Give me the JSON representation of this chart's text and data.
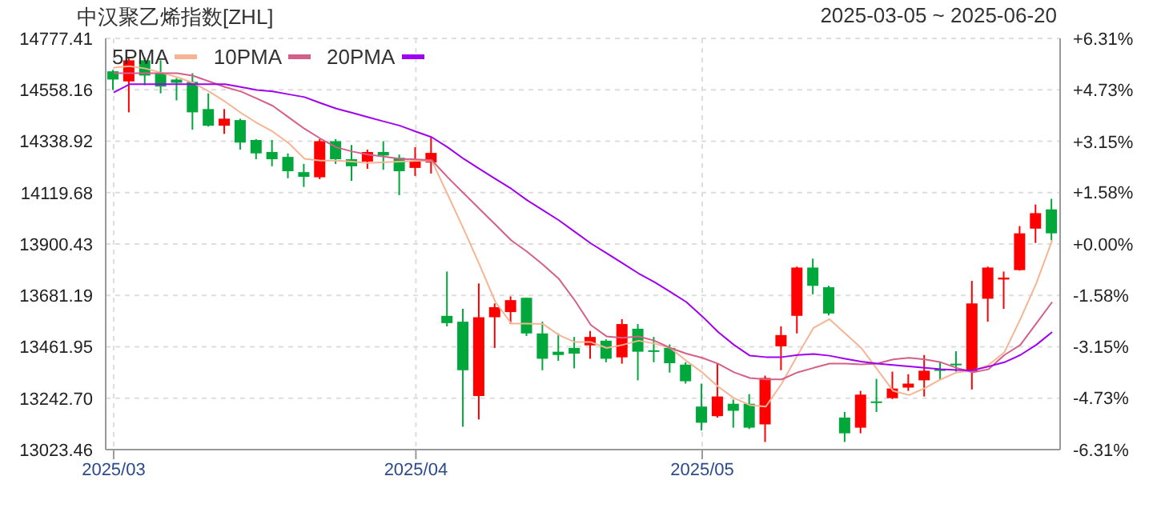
{
  "chart_data": {
    "type": "candlestick",
    "title": "中汉聚乙烯指数[ZHL]",
    "subtitle": "2025-03-05 ~ 2025-06-20",
    "categories": [
      "2025/03",
      null,
      null,
      null,
      null,
      null,
      null,
      null,
      null,
      null,
      null,
      null,
      null,
      null,
      null,
      null,
      null,
      null,
      null,
      "2025/04",
      null,
      null,
      null,
      null,
      null,
      null,
      null,
      null,
      null,
      null,
      null,
      null,
      null,
      null,
      null,
      null,
      null,
      "2025/05",
      null,
      null,
      null,
      null,
      null,
      null,
      null,
      null,
      null,
      null,
      null,
      null,
      null,
      null,
      null,
      null,
      null,
      null,
      null,
      null,
      null,
      null
    ],
    "ohlc": [
      [
        14637,
        14643,
        14557,
        14602
      ],
      [
        14594,
        14696,
        14462,
        14684
      ],
      [
        14684,
        14696,
        14578,
        14619
      ],
      [
        14629,
        14684,
        14543,
        14572
      ],
      [
        14602,
        14608,
        14513,
        14588
      ],
      [
        14592,
        14629,
        14388,
        14462
      ],
      [
        14476,
        14543,
        14401,
        14405
      ],
      [
        14405,
        14476,
        14370,
        14435
      ],
      [
        14429,
        14435,
        14303,
        14333
      ],
      [
        14344,
        14348,
        14262,
        14287
      ],
      [
        14293,
        14344,
        14232,
        14262
      ],
      [
        14272,
        14287,
        14181,
        14211
      ],
      [
        14207,
        14242,
        14144,
        14187
      ],
      [
        14185,
        14348,
        14177,
        14339
      ],
      [
        14339,
        14348,
        14242,
        14262
      ],
      [
        14262,
        14323,
        14170,
        14232
      ],
      [
        14252,
        14303,
        14221,
        14293
      ],
      [
        14293,
        14339,
        14217,
        14278
      ],
      [
        14268,
        14282,
        14109,
        14211
      ],
      [
        14225,
        14313,
        14191,
        14252
      ],
      [
        14248,
        14354,
        14201,
        14289
      ],
      [
        13594,
        13783,
        13549,
        13563
      ],
      [
        13569,
        13624,
        13121,
        13362
      ],
      [
        13252,
        13732,
        13152,
        13588
      ],
      [
        13588,
        13647,
        13457,
        13631
      ],
      [
        13610,
        13677,
        13559,
        13661
      ],
      [
        13671,
        13671,
        13508,
        13519
      ],
      [
        13519,
        13569,
        13362,
        13411
      ],
      [
        13441,
        13519,
        13402,
        13427
      ],
      [
        13457,
        13504,
        13370,
        13433
      ],
      [
        13468,
        13529,
        13411,
        13504
      ],
      [
        13488,
        13494,
        13396,
        13411
      ],
      [
        13417,
        13580,
        13390,
        13559
      ],
      [
        13539,
        13559,
        13319,
        13441
      ],
      [
        13447,
        13504,
        13396,
        13443
      ],
      [
        13457,
        13472,
        13352,
        13392
      ],
      [
        13386,
        13396,
        13305,
        13315
      ],
      [
        13207,
        13305,
        13105,
        13138
      ],
      [
        13166,
        13392,
        13160,
        13250
      ],
      [
        13219,
        13237,
        13117,
        13189
      ],
      [
        13219,
        13260,
        13111,
        13117
      ],
      [
        13131,
        13339,
        13056,
        13329
      ],
      [
        13464,
        13549,
        13362,
        13512
      ],
      [
        13594,
        13804,
        13519,
        13800
      ],
      [
        13800,
        13838,
        13686,
        13722
      ],
      [
        13716,
        13722,
        13596,
        13604
      ],
      [
        13160,
        13184,
        13056,
        13093
      ],
      [
        13117,
        13274,
        13093,
        13258
      ],
      [
        13229,
        13325,
        13184,
        13227
      ],
      [
        13243,
        13356,
        13239,
        13284
      ],
      [
        13288,
        13345,
        13274,
        13305
      ],
      [
        13319,
        13427,
        13250,
        13360
      ],
      [
        13366,
        13396,
        13321,
        13362
      ],
      [
        13390,
        13443,
        13356,
        13386
      ],
      [
        13356,
        13743,
        13280,
        13647
      ],
      [
        13667,
        13804,
        13569,
        13800
      ],
      [
        13749,
        13783,
        13624,
        13757
      ],
      [
        13789,
        13977,
        13787,
        13946
      ],
      [
        13966,
        14069,
        13905,
        14032
      ],
      [
        14048,
        14093,
        13916,
        13946
      ]
    ],
    "colors": [
      "#00a83c",
      "#ff0000",
      "#00a83c",
      "#00a83c",
      "#00a83c",
      "#00a83c",
      "#00a83c",
      "#ff0000",
      "#00a83c",
      "#00a83c",
      "#00a83c",
      "#00a83c",
      "#00a83c",
      "#ff0000",
      "#00a83c",
      "#00a83c",
      "#ff0000",
      "#00a83c",
      "#00a83c",
      "#ff0000",
      "#ff0000",
      "#00a83c",
      "#00a83c",
      "#ff0000",
      "#ff0000",
      "#ff0000",
      "#00a83c",
      "#00a83c",
      "#00a83c",
      "#00a83c",
      "#ff0000",
      "#00a83c",
      "#ff0000",
      "#00a83c",
      "#00a83c",
      "#00a83c",
      "#00a83c",
      "#00a83c",
      "#ff0000",
      "#00a83c",
      "#00a83c",
      "#ff0000",
      "#ff0000",
      "#ff0000",
      "#00a83c",
      "#00a83c",
      "#00a83c",
      "#ff0000",
      "#00a83c",
      "#ff0000",
      "#ff0000",
      "#ff0000",
      "#00a83c",
      "#00a83c",
      "#ff0000",
      "#ff0000",
      "#ff0000",
      "#ff0000",
      "#ff0000",
      "#00a83c"
    ],
    "series": [
      {
        "name": "5PMA",
        "type": "line",
        "color": "#f5b595",
        "values": [
          14653,
          14659,
          14649,
          14631,
          14612,
          14588,
          14551,
          14508,
          14460,
          14417,
          14380,
          14331,
          14264,
          14256,
          14256,
          14252,
          14246,
          14249,
          14252,
          14255,
          14256,
          14111,
          13965,
          13812,
          13653,
          13561,
          13561,
          13559,
          13512,
          13482,
          13482,
          13457,
          13470,
          13488,
          13476,
          13457,
          13402,
          13353,
          13292,
          13243,
          13213,
          13207,
          13305,
          13427,
          13543,
          13580,
          13518,
          13457,
          13366,
          13274,
          13256,
          13286,
          13323,
          13353,
          13360,
          13384,
          13439,
          13580,
          13732,
          13916
        ]
      },
      {
        "name": "10PMA",
        "type": "line",
        "color": "#d45f88",
        "values": [
          14629,
          14629,
          14629,
          14629,
          14629,
          14618,
          14594,
          14570,
          14551,
          14521,
          14490,
          14441,
          14392,
          14350,
          14313,
          14295,
          14282,
          14273,
          14264,
          14261,
          14258,
          14185,
          14117,
          14050,
          13983,
          13916,
          13867,
          13812,
          13751,
          13659,
          13555,
          13506,
          13500,
          13506,
          13488,
          13457,
          13433,
          13415,
          13390,
          13353,
          13329,
          13323,
          13323,
          13353,
          13372,
          13390,
          13390,
          13387,
          13390,
          13408,
          13415,
          13408,
          13396,
          13372,
          13353,
          13366,
          13427,
          13470,
          13561,
          13653
        ]
      },
      {
        "name": "20PMA",
        "type": "line",
        "color": "#a000f0",
        "values": [
          14547,
          14582,
          14582,
          14582,
          14582,
          14582,
          14582,
          14582,
          14570,
          14557,
          14551,
          14539,
          14527,
          14502,
          14478,
          14460,
          14441,
          14423,
          14405,
          14380,
          14356,
          14313,
          14264,
          14221,
          14178,
          14136,
          14087,
          14044,
          14001,
          13952,
          13903,
          13861,
          13818,
          13775,
          13738,
          13696,
          13653,
          13592,
          13525,
          13470,
          13424,
          13418,
          13418,
          13427,
          13431,
          13424,
          13411,
          13399,
          13390,
          13384,
          13378,
          13372,
          13366,
          13363,
          13361,
          13378,
          13396,
          13427,
          13470,
          13525
        ]
      }
    ],
    "ylim": [
      13023.46,
      14777.41
    ],
    "yticks": [
      13023.46,
      {
        "value": 13242.7,
        "label": "13242.70"
      },
      13461.95,
      13681.19,
      13900.43,
      14119.68,
      14338.92,
      14558.16,
      14777.41
    ],
    "y2lim": [
      -6.31,
      6.31
    ],
    "y2ticks": [
      {
        "value": -6.31,
        "label": "-6.31%"
      },
      {
        "value": -4.73,
        "label": "-4.73%"
      },
      {
        "value": -3.15,
        "label": "-3.15%"
      },
      {
        "value": -1.58,
        "label": "-1.58%"
      },
      {
        "value": 0,
        "label": "+0.00%"
      },
      {
        "value": 1.58,
        "label": "+1.58%"
      },
      {
        "value": 3.15,
        "label": "+3.15%"
      },
      {
        "value": 4.73,
        "label": "+4.73%"
      },
      {
        "value": 6.31,
        "label": "+6.31%"
      }
    ],
    "grid": true,
    "legend": "top left",
    "marker": "none",
    "line_style": "solid"
  }
}
